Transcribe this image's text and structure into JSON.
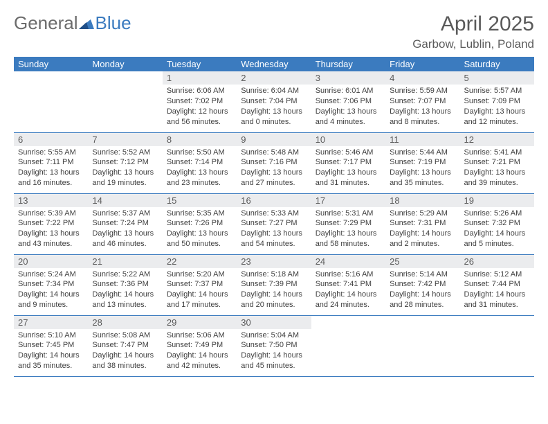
{
  "brand": {
    "part1": "General",
    "part2": "Blue"
  },
  "title": "April 2025",
  "location": "Garbow, Lublin, Poland",
  "colors": {
    "header_bg": "#3b7bbf",
    "header_text": "#ffffff",
    "daynum_bg": "#ebecee",
    "text_gray": "#5a5a5a",
    "body_text": "#404040",
    "row_border": "#3b7bbf",
    "page_bg": "#ffffff"
  },
  "weekdays": [
    "Sunday",
    "Monday",
    "Tuesday",
    "Wednesday",
    "Thursday",
    "Friday",
    "Saturday"
  ],
  "weeks": [
    [
      {
        "empty": true
      },
      {
        "empty": true
      },
      {
        "day": "1",
        "sunrise": "Sunrise: 6:06 AM",
        "sunset": "Sunset: 7:02 PM",
        "daylight": "Daylight: 12 hours and 56 minutes."
      },
      {
        "day": "2",
        "sunrise": "Sunrise: 6:04 AM",
        "sunset": "Sunset: 7:04 PM",
        "daylight": "Daylight: 13 hours and 0 minutes."
      },
      {
        "day": "3",
        "sunrise": "Sunrise: 6:01 AM",
        "sunset": "Sunset: 7:06 PM",
        "daylight": "Daylight: 13 hours and 4 minutes."
      },
      {
        "day": "4",
        "sunrise": "Sunrise: 5:59 AM",
        "sunset": "Sunset: 7:07 PM",
        "daylight": "Daylight: 13 hours and 8 minutes."
      },
      {
        "day": "5",
        "sunrise": "Sunrise: 5:57 AM",
        "sunset": "Sunset: 7:09 PM",
        "daylight": "Daylight: 13 hours and 12 minutes."
      }
    ],
    [
      {
        "day": "6",
        "sunrise": "Sunrise: 5:55 AM",
        "sunset": "Sunset: 7:11 PM",
        "daylight": "Daylight: 13 hours and 16 minutes."
      },
      {
        "day": "7",
        "sunrise": "Sunrise: 5:52 AM",
        "sunset": "Sunset: 7:12 PM",
        "daylight": "Daylight: 13 hours and 19 minutes."
      },
      {
        "day": "8",
        "sunrise": "Sunrise: 5:50 AM",
        "sunset": "Sunset: 7:14 PM",
        "daylight": "Daylight: 13 hours and 23 minutes."
      },
      {
        "day": "9",
        "sunrise": "Sunrise: 5:48 AM",
        "sunset": "Sunset: 7:16 PM",
        "daylight": "Daylight: 13 hours and 27 minutes."
      },
      {
        "day": "10",
        "sunrise": "Sunrise: 5:46 AM",
        "sunset": "Sunset: 7:17 PM",
        "daylight": "Daylight: 13 hours and 31 minutes."
      },
      {
        "day": "11",
        "sunrise": "Sunrise: 5:44 AM",
        "sunset": "Sunset: 7:19 PM",
        "daylight": "Daylight: 13 hours and 35 minutes."
      },
      {
        "day": "12",
        "sunrise": "Sunrise: 5:41 AM",
        "sunset": "Sunset: 7:21 PM",
        "daylight": "Daylight: 13 hours and 39 minutes."
      }
    ],
    [
      {
        "day": "13",
        "sunrise": "Sunrise: 5:39 AM",
        "sunset": "Sunset: 7:22 PM",
        "daylight": "Daylight: 13 hours and 43 minutes."
      },
      {
        "day": "14",
        "sunrise": "Sunrise: 5:37 AM",
        "sunset": "Sunset: 7:24 PM",
        "daylight": "Daylight: 13 hours and 46 minutes."
      },
      {
        "day": "15",
        "sunrise": "Sunrise: 5:35 AM",
        "sunset": "Sunset: 7:26 PM",
        "daylight": "Daylight: 13 hours and 50 minutes."
      },
      {
        "day": "16",
        "sunrise": "Sunrise: 5:33 AM",
        "sunset": "Sunset: 7:27 PM",
        "daylight": "Daylight: 13 hours and 54 minutes."
      },
      {
        "day": "17",
        "sunrise": "Sunrise: 5:31 AM",
        "sunset": "Sunset: 7:29 PM",
        "daylight": "Daylight: 13 hours and 58 minutes."
      },
      {
        "day": "18",
        "sunrise": "Sunrise: 5:29 AM",
        "sunset": "Sunset: 7:31 PM",
        "daylight": "Daylight: 14 hours and 2 minutes."
      },
      {
        "day": "19",
        "sunrise": "Sunrise: 5:26 AM",
        "sunset": "Sunset: 7:32 PM",
        "daylight": "Daylight: 14 hours and 5 minutes."
      }
    ],
    [
      {
        "day": "20",
        "sunrise": "Sunrise: 5:24 AM",
        "sunset": "Sunset: 7:34 PM",
        "daylight": "Daylight: 14 hours and 9 minutes."
      },
      {
        "day": "21",
        "sunrise": "Sunrise: 5:22 AM",
        "sunset": "Sunset: 7:36 PM",
        "daylight": "Daylight: 14 hours and 13 minutes."
      },
      {
        "day": "22",
        "sunrise": "Sunrise: 5:20 AM",
        "sunset": "Sunset: 7:37 PM",
        "daylight": "Daylight: 14 hours and 17 minutes."
      },
      {
        "day": "23",
        "sunrise": "Sunrise: 5:18 AM",
        "sunset": "Sunset: 7:39 PM",
        "daylight": "Daylight: 14 hours and 20 minutes."
      },
      {
        "day": "24",
        "sunrise": "Sunrise: 5:16 AM",
        "sunset": "Sunset: 7:41 PM",
        "daylight": "Daylight: 14 hours and 24 minutes."
      },
      {
        "day": "25",
        "sunrise": "Sunrise: 5:14 AM",
        "sunset": "Sunset: 7:42 PM",
        "daylight": "Daylight: 14 hours and 28 minutes."
      },
      {
        "day": "26",
        "sunrise": "Sunrise: 5:12 AM",
        "sunset": "Sunset: 7:44 PM",
        "daylight": "Daylight: 14 hours and 31 minutes."
      }
    ],
    [
      {
        "day": "27",
        "sunrise": "Sunrise: 5:10 AM",
        "sunset": "Sunset: 7:45 PM",
        "daylight": "Daylight: 14 hours and 35 minutes."
      },
      {
        "day": "28",
        "sunrise": "Sunrise: 5:08 AM",
        "sunset": "Sunset: 7:47 PM",
        "daylight": "Daylight: 14 hours and 38 minutes."
      },
      {
        "day": "29",
        "sunrise": "Sunrise: 5:06 AM",
        "sunset": "Sunset: 7:49 PM",
        "daylight": "Daylight: 14 hours and 42 minutes."
      },
      {
        "day": "30",
        "sunrise": "Sunrise: 5:04 AM",
        "sunset": "Sunset: 7:50 PM",
        "daylight": "Daylight: 14 hours and 45 minutes."
      },
      {
        "empty": true
      },
      {
        "empty": true
      },
      {
        "empty": true
      }
    ]
  ]
}
